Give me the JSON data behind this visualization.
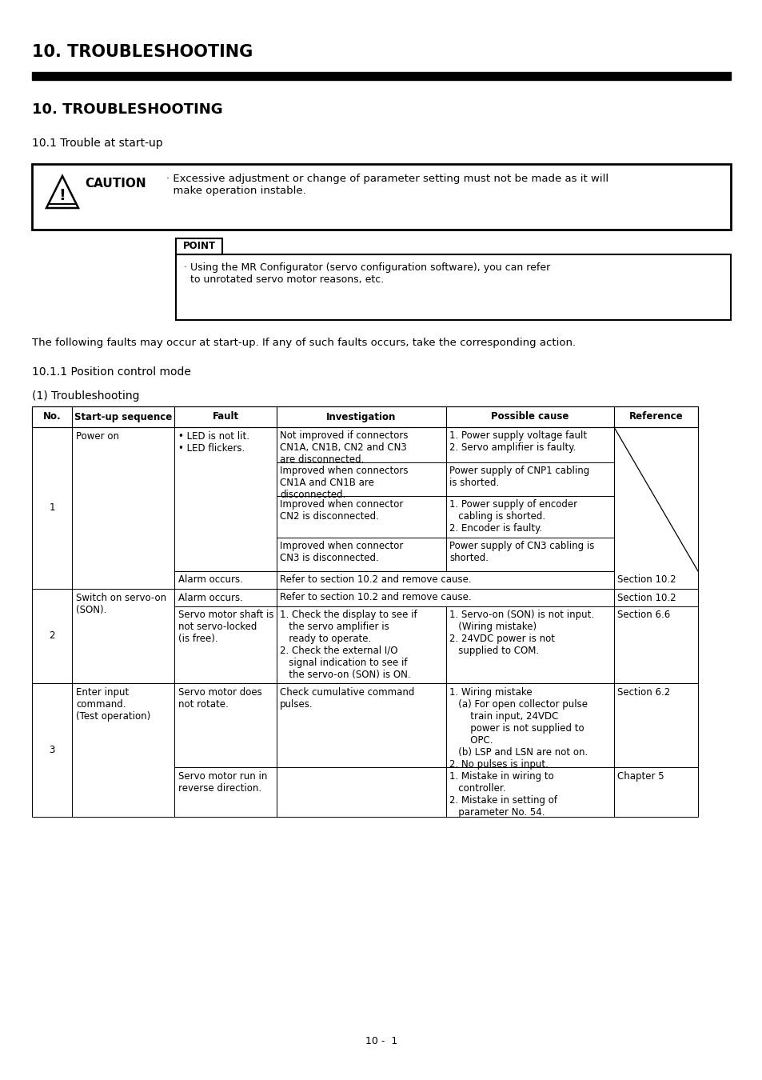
{
  "page_title": "10. TROUBLESHOOTING",
  "section_title": "10. TROUBLESHOOTING",
  "subsection": "10.1 Trouble at start-up",
  "caution_text": "· Excessive adjustment or change of parameter setting must not be made as it will\n  make operation instable.",
  "point_label": "POINT",
  "point_text": "· Using the MR Configurator (servo configuration software), you can refer\n  to unrotated servo motor reasons, etc.",
  "intro_text": "The following faults may occur at start-up. If any of such faults occurs, take the corresponding action.",
  "sub_section_title": "10.1.1 Position control mode",
  "table_title": "(1) Troubleshooting",
  "col_headers": [
    "No.",
    "Start-up sequence",
    "Fault",
    "Investigation",
    "Possible cause",
    "Reference"
  ],
  "footer": "10 -  1",
  "bg_color": "#ffffff"
}
